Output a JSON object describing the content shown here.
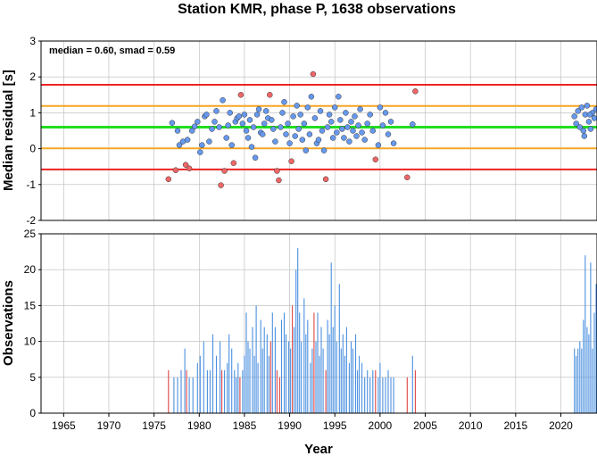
{
  "figure": {
    "title": "Station KMR, phase P, 1638 observations"
  },
  "chart_data": [
    {
      "type": "scatter",
      "ylabel": "Median residual [s]",
      "xlabel": "",
      "xlim": [
        1962.5,
        2024.0
      ],
      "ylim": [
        -2,
        3
      ],
      "yticks": [
        -2,
        -1,
        0,
        1,
        2,
        3
      ],
      "xgrid": [
        1965,
        1970,
        1975,
        1980,
        1985,
        1990,
        1995,
        2000,
        2005,
        2010,
        2015,
        2020
      ],
      "grid": true,
      "annotation": "median = 0.60, smad = 0.59",
      "reference_lines": [
        {
          "y": 0.6,
          "color": "#22dd22",
          "role": "median"
        },
        {
          "y": 1.19,
          "color": "#f5a623",
          "role": "+1 smad"
        },
        {
          "y": 0.01,
          "color": "#f5a623",
          "role": "-1 smad"
        },
        {
          "y": 1.78,
          "color": "#ee2222",
          "role": "+2 smad"
        },
        {
          "y": -0.58,
          "color": "#ee2222",
          "role": "-2 smad"
        }
      ],
      "inlier_color": "#6699ee",
      "outlier_color": "#ee6666",
      "points": [
        [
          1976.6,
          -0.85,
          "o"
        ],
        [
          1977.0,
          0.72,
          "i"
        ],
        [
          1977.4,
          -0.6,
          "o"
        ],
        [
          1977.6,
          0.5,
          "i"
        ],
        [
          1977.8,
          0.1,
          "i"
        ],
        [
          1978.2,
          0.2,
          "i"
        ],
        [
          1978.5,
          -0.45,
          "o"
        ],
        [
          1978.7,
          0.25,
          "i"
        ],
        [
          1978.9,
          -0.55,
          "o"
        ],
        [
          1979.2,
          0.5,
          "i"
        ],
        [
          1979.5,
          0.62,
          "i"
        ],
        [
          1979.8,
          0.75,
          "i"
        ],
        [
          1980.1,
          -0.1,
          "i"
        ],
        [
          1980.3,
          0.1,
          "i"
        ],
        [
          1980.6,
          0.9,
          "i"
        ],
        [
          1980.8,
          0.95,
          "i"
        ],
        [
          1981.1,
          0.2,
          "i"
        ],
        [
          1981.4,
          0.55,
          "i"
        ],
        [
          1981.7,
          0.75,
          "i"
        ],
        [
          1981.9,
          1.05,
          "i"
        ],
        [
          1982.2,
          0.6,
          "i"
        ],
        [
          1982.4,
          -1.02,
          "o"
        ],
        [
          1982.6,
          1.35,
          "i"
        ],
        [
          1982.8,
          -0.62,
          "o"
        ],
        [
          1983.0,
          0.3,
          "i"
        ],
        [
          1983.2,
          0.65,
          "i"
        ],
        [
          1983.4,
          1.0,
          "i"
        ],
        [
          1983.6,
          0.1,
          "i"
        ],
        [
          1983.8,
          -0.4,
          "o"
        ],
        [
          1984.0,
          0.75,
          "i"
        ],
        [
          1984.2,
          0.85,
          "i"
        ],
        [
          1984.4,
          0.9,
          "i"
        ],
        [
          1984.6,
          1.5,
          "o"
        ],
        [
          1984.8,
          0.7,
          "i"
        ],
        [
          1985.0,
          0.95,
          "i"
        ],
        [
          1985.2,
          0.5,
          "i"
        ],
        [
          1985.4,
          0.3,
          "i"
        ],
        [
          1985.6,
          0.8,
          "i"
        ],
        [
          1985.8,
          0.05,
          "i"
        ],
        [
          1986.0,
          0.6,
          "i"
        ],
        [
          1986.2,
          -0.25,
          "i"
        ],
        [
          1986.4,
          0.95,
          "i"
        ],
        [
          1986.6,
          1.1,
          "i"
        ],
        [
          1986.8,
          0.45,
          "i"
        ],
        [
          1987.0,
          0.4,
          "i"
        ],
        [
          1987.2,
          0.7,
          "i"
        ],
        [
          1987.4,
          1.05,
          "i"
        ],
        [
          1987.6,
          0.85,
          "i"
        ],
        [
          1987.8,
          1.5,
          "o"
        ],
        [
          1988.0,
          0.8,
          "i"
        ],
        [
          1988.2,
          0.55,
          "i"
        ],
        [
          1988.4,
          0.2,
          "i"
        ],
        [
          1988.6,
          -0.62,
          "o"
        ],
        [
          1988.8,
          -0.88,
          "o"
        ],
        [
          1989.0,
          0.6,
          "i"
        ],
        [
          1989.2,
          1.0,
          "i"
        ],
        [
          1989.4,
          1.3,
          "i"
        ],
        [
          1989.6,
          0.4,
          "i"
        ],
        [
          1989.8,
          0.7,
          "i"
        ],
        [
          1990.0,
          0.15,
          "i"
        ],
        [
          1990.2,
          -0.35,
          "o"
        ],
        [
          1990.4,
          0.9,
          "i"
        ],
        [
          1990.6,
          0.35,
          "i"
        ],
        [
          1990.8,
          1.2,
          "i"
        ],
        [
          1991.0,
          0.55,
          "i"
        ],
        [
          1991.2,
          0.95,
          "i"
        ],
        [
          1991.4,
          0.25,
          "i"
        ],
        [
          1991.6,
          0.7,
          "i"
        ],
        [
          1991.8,
          -0.05,
          "i"
        ],
        [
          1992.0,
          1.15,
          "i"
        ],
        [
          1992.2,
          0.4,
          "i"
        ],
        [
          1992.4,
          1.45,
          "i"
        ],
        [
          1992.6,
          2.08,
          "o"
        ],
        [
          1992.8,
          0.85,
          "i"
        ],
        [
          1993.0,
          0.15,
          "i"
        ],
        [
          1993.2,
          0.25,
          "i"
        ],
        [
          1993.4,
          1.05,
          "i"
        ],
        [
          1993.6,
          0.5,
          "i"
        ],
        [
          1993.8,
          -0.05,
          "i"
        ],
        [
          1994.0,
          -0.85,
          "o"
        ],
        [
          1994.2,
          0.6,
          "i"
        ],
        [
          1994.4,
          0.95,
          "i"
        ],
        [
          1994.6,
          0.75,
          "i"
        ],
        [
          1994.8,
          0.3,
          "i"
        ],
        [
          1995.0,
          1.15,
          "i"
        ],
        [
          1995.2,
          0.45,
          "i"
        ],
        [
          1995.4,
          1.45,
          "i"
        ],
        [
          1995.6,
          0.8,
          "i"
        ],
        [
          1995.8,
          0.55,
          "i"
        ],
        [
          1996.0,
          0.3,
          "i"
        ],
        [
          1996.2,
          1.0,
          "i"
        ],
        [
          1996.4,
          0.6,
          "i"
        ],
        [
          1996.6,
          0.2,
          "i"
        ],
        [
          1996.8,
          0.75,
          "i"
        ],
        [
          1997.0,
          0.5,
          "i"
        ],
        [
          1997.2,
          0.9,
          "i"
        ],
        [
          1997.4,
          0.35,
          "i"
        ],
        [
          1997.6,
          0.65,
          "i"
        ],
        [
          1997.8,
          1.1,
          "i"
        ],
        [
          1998.0,
          0.45,
          "i"
        ],
        [
          1998.3,
          0.25,
          "i"
        ],
        [
          1998.6,
          0.7,
          "i"
        ],
        [
          1998.9,
          0.95,
          "i"
        ],
        [
          1999.2,
          0.5,
          "i"
        ],
        [
          1999.5,
          -0.3,
          "o"
        ],
        [
          1999.8,
          0.1,
          "i"
        ],
        [
          2000.0,
          1.15,
          "i"
        ],
        [
          2000.3,
          0.65,
          "i"
        ],
        [
          2000.6,
          1.0,
          "i"
        ],
        [
          2000.9,
          0.4,
          "i"
        ],
        [
          2001.2,
          0.75,
          "i"
        ],
        [
          2001.5,
          0.15,
          "i"
        ],
        [
          2003.0,
          -0.8,
          "o"
        ],
        [
          2003.6,
          0.68,
          "i"
        ],
        [
          2003.9,
          1.6,
          "o"
        ],
        [
          2021.5,
          0.9,
          "i"
        ],
        [
          2021.7,
          0.7,
          "i"
        ],
        [
          2021.9,
          1.05,
          "i"
        ],
        [
          2022.1,
          0.6,
          "i"
        ],
        [
          2022.3,
          1.15,
          "i"
        ],
        [
          2022.5,
          0.5,
          "i"
        ],
        [
          2022.7,
          0.95,
          "i"
        ],
        [
          2022.9,
          1.2,
          "i"
        ],
        [
          2023.1,
          0.75,
          "i"
        ],
        [
          2023.3,
          0.55,
          "i"
        ],
        [
          2023.5,
          1.0,
          "i"
        ],
        [
          2023.7,
          0.85,
          "i"
        ],
        [
          2023.9,
          1.1,
          "i"
        ],
        [
          2022.6,
          0.35,
          "i"
        ],
        [
          2023.2,
          0.95,
          "i"
        ]
      ]
    },
    {
      "type": "bar",
      "ylabel": "Observations",
      "xlabel": "Year",
      "xlim": [
        1962.5,
        2024.0
      ],
      "ylim": [
        0,
        25
      ],
      "yticks": [
        0,
        5,
        10,
        15,
        20,
        25
      ],
      "xticks": [
        1965,
        1970,
        1975,
        1980,
        1985,
        1990,
        1995,
        2000,
        2005,
        2010,
        2015,
        2020
      ],
      "grid": true,
      "inlier_color": "#4a90e0",
      "outlier_color": "#dd4444",
      "bars": [
        [
          1976.6,
          6,
          "o"
        ],
        [
          1977.2,
          5,
          "i"
        ],
        [
          1977.6,
          5,
          "i"
        ],
        [
          1978.0,
          6,
          "i"
        ],
        [
          1978.4,
          9,
          "i"
        ],
        [
          1978.6,
          6,
          "o"
        ],
        [
          1978.9,
          5,
          "i"
        ],
        [
          1979.3,
          5,
          "i"
        ],
        [
          1979.8,
          7,
          "i"
        ],
        [
          1980.1,
          8,
          "i"
        ],
        [
          1980.5,
          10,
          "i"
        ],
        [
          1980.9,
          6,
          "i"
        ],
        [
          1981.2,
          6,
          "i"
        ],
        [
          1981.5,
          11,
          "i"
        ],
        [
          1981.9,
          8,
          "i"
        ],
        [
          1982.3,
          10,
          "i"
        ],
        [
          1982.5,
          6,
          "o"
        ],
        [
          1982.8,
          6,
          "i"
        ],
        [
          1983.1,
          7,
          "i"
        ],
        [
          1983.3,
          11,
          "i"
        ],
        [
          1983.6,
          9,
          "i"
        ],
        [
          1983.9,
          6,
          "i"
        ],
        [
          1984.1,
          5,
          "i"
        ],
        [
          1984.3,
          7,
          "i"
        ],
        [
          1984.5,
          5,
          "o"
        ],
        [
          1984.8,
          6,
          "i"
        ],
        [
          1985.0,
          8,
          "i"
        ],
        [
          1985.2,
          14,
          "i"
        ],
        [
          1985.4,
          10,
          "i"
        ],
        [
          1985.6,
          9,
          "i"
        ],
        [
          1985.9,
          12,
          "i"
        ],
        [
          1986.1,
          8,
          "i"
        ],
        [
          1986.3,
          15,
          "i"
        ],
        [
          1986.5,
          7,
          "i"
        ],
        [
          1986.8,
          13,
          "i"
        ],
        [
          1987.0,
          9,
          "i"
        ],
        [
          1987.2,
          12,
          "i"
        ],
        [
          1987.5,
          11,
          "i"
        ],
        [
          1987.7,
          8,
          "i"
        ],
        [
          1987.9,
          10,
          "o"
        ],
        [
          1988.1,
          14,
          "i"
        ],
        [
          1988.4,
          12,
          "i"
        ],
        [
          1988.6,
          6,
          "o"
        ],
        [
          1988.9,
          5,
          "o"
        ],
        [
          1989.1,
          13,
          "i"
        ],
        [
          1989.4,
          14,
          "i"
        ],
        [
          1989.6,
          11,
          "i"
        ],
        [
          1989.9,
          10,
          "i"
        ],
        [
          1990.1,
          9,
          "i"
        ],
        [
          1990.3,
          15,
          "o"
        ],
        [
          1990.5,
          12,
          "i"
        ],
        [
          1990.7,
          20,
          "i"
        ],
        [
          1990.9,
          23,
          "i"
        ],
        [
          1991.1,
          14,
          "i"
        ],
        [
          1991.3,
          10,
          "i"
        ],
        [
          1991.6,
          16,
          "i"
        ],
        [
          1991.8,
          11,
          "i"
        ],
        [
          1992.0,
          13,
          "i"
        ],
        [
          1992.3,
          7,
          "i"
        ],
        [
          1992.5,
          9,
          "i"
        ],
        [
          1992.7,
          14,
          "o"
        ],
        [
          1992.9,
          10,
          "i"
        ],
        [
          1993.1,
          14,
          "i"
        ],
        [
          1993.3,
          8,
          "i"
        ],
        [
          1993.5,
          12,
          "i"
        ],
        [
          1993.7,
          9,
          "i"
        ],
        [
          1994.0,
          6,
          "o"
        ],
        [
          1994.2,
          13,
          "i"
        ],
        [
          1994.4,
          11,
          "i"
        ],
        [
          1994.6,
          21,
          "i"
        ],
        [
          1994.8,
          12,
          "i"
        ],
        [
          1995.0,
          15,
          "i"
        ],
        [
          1995.2,
          10,
          "i"
        ],
        [
          1995.5,
          18,
          "i"
        ],
        [
          1995.7,
          9,
          "i"
        ],
        [
          1995.9,
          11,
          "i"
        ],
        [
          1996.1,
          8,
          "i"
        ],
        [
          1996.3,
          12,
          "i"
        ],
        [
          1996.6,
          7,
          "i"
        ],
        [
          1996.8,
          10,
          "i"
        ],
        [
          1997.0,
          9,
          "i"
        ],
        [
          1997.3,
          11,
          "i"
        ],
        [
          1997.5,
          6,
          "i"
        ],
        [
          1997.7,
          8,
          "i"
        ],
        [
          1998.0,
          7,
          "i"
        ],
        [
          1998.3,
          5,
          "i"
        ],
        [
          1998.6,
          6,
          "i"
        ],
        [
          1998.9,
          5,
          "i"
        ],
        [
          1999.2,
          6,
          "i"
        ],
        [
          1999.5,
          6,
          "o"
        ],
        [
          1999.8,
          5,
          "i"
        ],
        [
          2000.0,
          7,
          "i"
        ],
        [
          2000.3,
          5,
          "i"
        ],
        [
          2000.6,
          5,
          "i"
        ],
        [
          2000.9,
          6,
          "i"
        ],
        [
          2001.2,
          5,
          "i"
        ],
        [
          2001.5,
          5,
          "i"
        ],
        [
          2003.0,
          5,
          "o"
        ],
        [
          2003.6,
          8,
          "i"
        ],
        [
          2003.9,
          6,
          "o"
        ],
        [
          2021.5,
          9,
          "i"
        ],
        [
          2021.7,
          8,
          "i"
        ],
        [
          2021.9,
          9,
          "i"
        ],
        [
          2022.1,
          10,
          "i"
        ],
        [
          2022.3,
          9,
          "i"
        ],
        [
          2022.5,
          13,
          "i"
        ],
        [
          2022.7,
          22,
          "i"
        ],
        [
          2022.9,
          12,
          "i"
        ],
        [
          2023.1,
          11,
          "i"
        ],
        [
          2023.3,
          21,
          "i"
        ],
        [
          2023.5,
          9,
          "i"
        ],
        [
          2023.7,
          14,
          "i"
        ],
        [
          2023.9,
          18,
          "i"
        ]
      ]
    }
  ]
}
